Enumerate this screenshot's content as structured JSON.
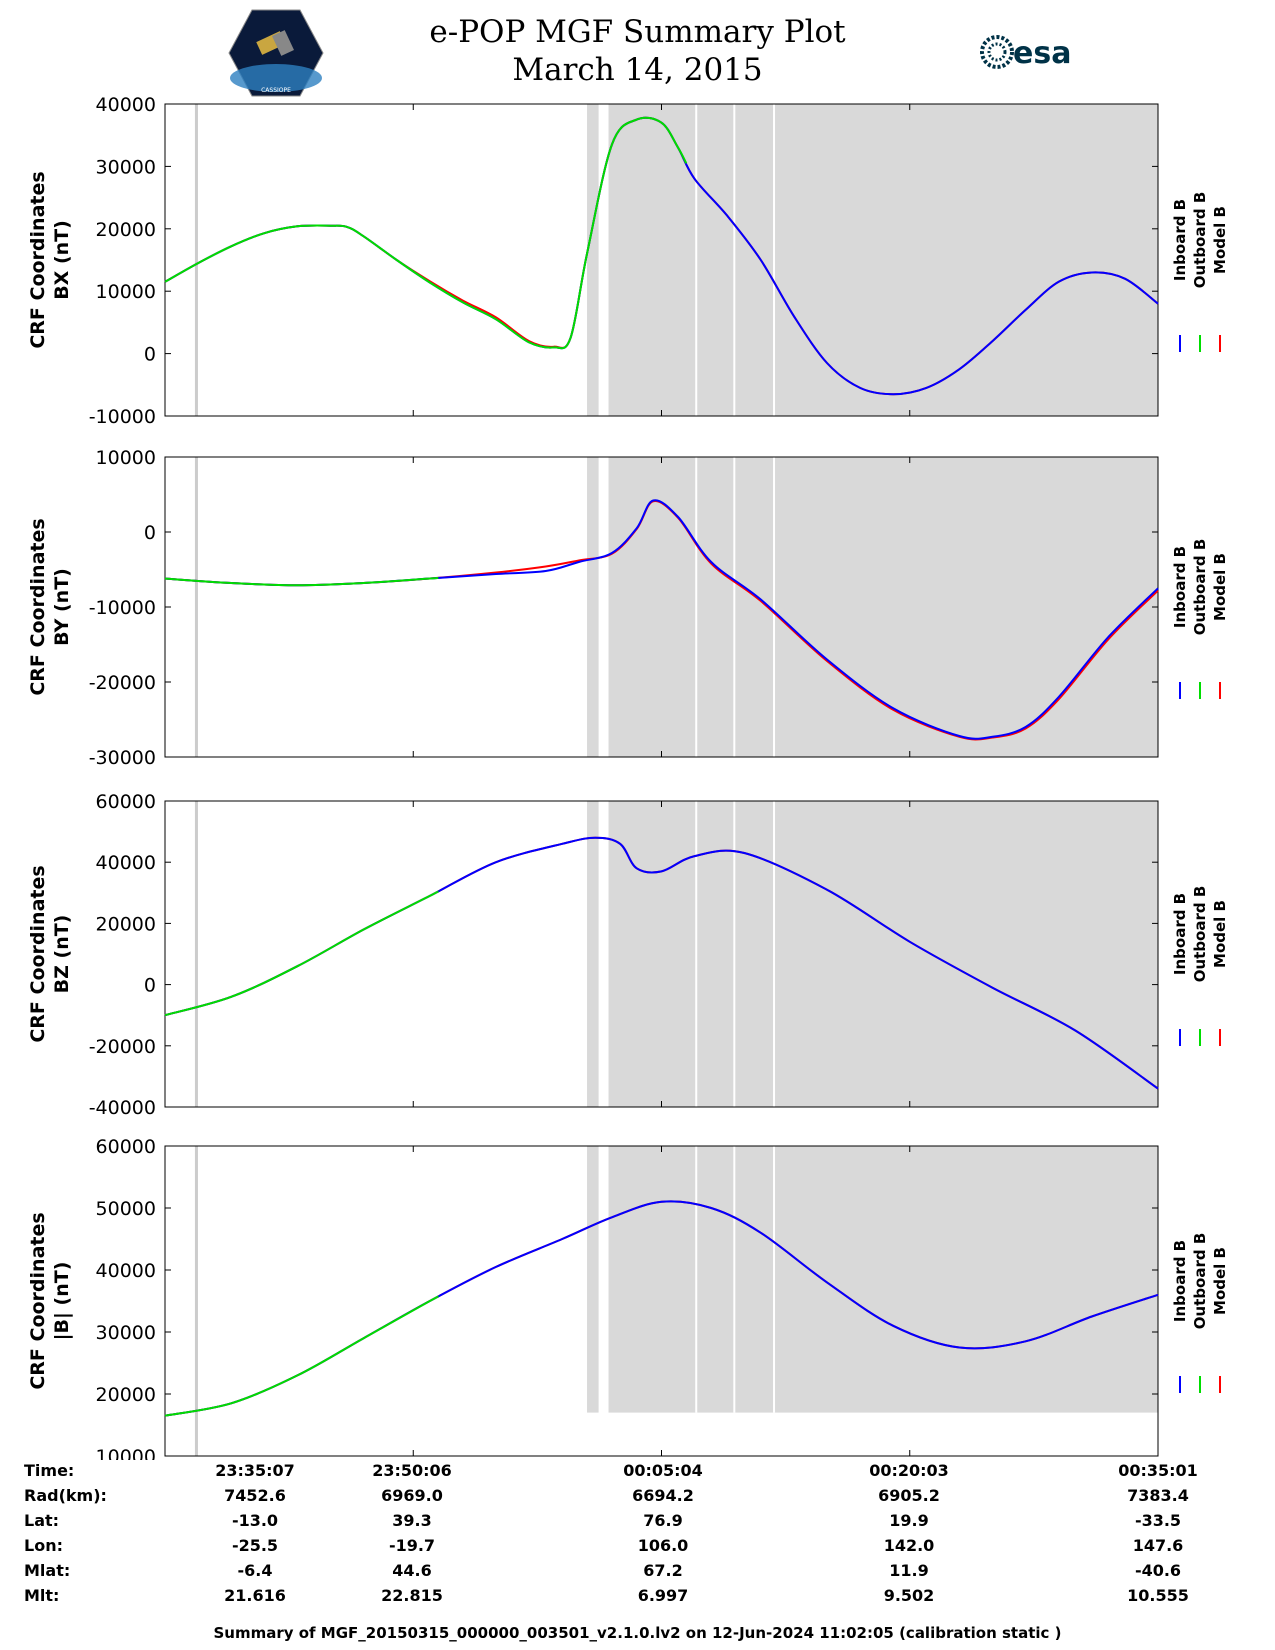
{
  "header": {
    "title": "e-POP MGF Summary Plot",
    "date": "March 14, 2015",
    "mission_logo": {
      "label": "CASSIOPE"
    },
    "esa_logo": {
      "label": "esa"
    }
  },
  "colors": {
    "inboard": "#0000ff",
    "outboard": "#00dd00",
    "model": "#ff0000",
    "shade": "#d9d9d9"
  },
  "legend": [
    "Inboard B",
    "Outboard B",
    "Model B"
  ],
  "chart_data": [
    {
      "type": "line",
      "ylabel": [
        "CRF Coordinates",
        "BX (nT)"
      ],
      "ylim": [
        -10000,
        40000
      ],
      "yticks": [
        -10000,
        0,
        10000,
        20000,
        30000,
        40000
      ],
      "x_unit": "minutes from 23:35:07",
      "xlim": [
        0,
        60
      ],
      "green_until": 31.5,
      "x": [
        0,
        2,
        4,
        6,
        8,
        10,
        11,
        12,
        14,
        16,
        18,
        20,
        22,
        23.5,
        24.5,
        25.5,
        27,
        28.5,
        30,
        31,
        32,
        34,
        36,
        38,
        40,
        42,
        44,
        46,
        48,
        50,
        52,
        54,
        56,
        58,
        60
      ],
      "inboard": [
        11500,
        14500,
        17200,
        19300,
        20400,
        20500,
        20300,
        18800,
        15000,
        11400,
        8200,
        5500,
        1800,
        1000,
        2500,
        16000,
        33500,
        37500,
        37000,
        33000,
        28000,
        22000,
        15000,
        6000,
        -1500,
        -5500,
        -6500,
        -5500,
        -2500,
        2000,
        7000,
        11500,
        13000,
        12000,
        8000
      ],
      "model": [
        11500,
        14500,
        17200,
        19300,
        20400,
        20500,
        20300,
        18800,
        15000,
        11600,
        8500,
        5800,
        2000,
        1100,
        2500,
        16000,
        33500,
        37500,
        37000,
        33000,
        28000,
        22000,
        15000,
        6000,
        -1500,
        -5500,
        -6500,
        -5500,
        -2500,
        2000,
        7000,
        11500,
        13000,
        12000,
        8000
      ]
    },
    {
      "type": "line",
      "ylabel": [
        "CRF Coordinates",
        "BY (nT)"
      ],
      "ylim": [
        -30000,
        10000
      ],
      "yticks": [
        -30000,
        -20000,
        -10000,
        0,
        10000
      ],
      "x_unit": "minutes from 23:35:07",
      "xlim": [
        0,
        60
      ],
      "green_until": 16.5,
      "x": [
        0,
        4,
        8,
        12,
        16,
        20,
        23,
        25,
        27,
        28.5,
        29.5,
        31,
        33,
        36,
        40,
        44,
        48,
        50,
        52,
        54,
        57,
        60
      ],
      "inboard": [
        -6200,
        -6800,
        -7100,
        -6800,
        -6200,
        -5600,
        -5200,
        -4000,
        -2800,
        500,
        4200,
        2000,
        -4000,
        -9000,
        -17000,
        -23500,
        -27200,
        -27300,
        -26000,
        -22000,
        -14000,
        -7500
      ],
      "model": [
        -6200,
        -6800,
        -7100,
        -6800,
        -6200,
        -5400,
        -4600,
        -3800,
        -2900,
        400,
        4100,
        1900,
        -4200,
        -9200,
        -17200,
        -23700,
        -27300,
        -27400,
        -26200,
        -22300,
        -14300,
        -7800
      ]
    },
    {
      "type": "line",
      "ylabel": [
        "CRF Coordinates",
        "BZ (nT)"
      ],
      "ylim": [
        -40000,
        60000
      ],
      "yticks": [
        -40000,
        -20000,
        0,
        20000,
        40000,
        60000
      ],
      "x_unit": "minutes from 23:35:07",
      "xlim": [
        0,
        60
      ],
      "green_until": 16.5,
      "x": [
        0,
        4,
        8,
        12,
        16,
        20,
        24,
        26,
        27.5,
        28.5,
        30,
        32,
        35,
        40,
        45,
        50,
        55,
        60
      ],
      "inboard": [
        -10000,
        -4000,
        6000,
        18000,
        29000,
        40000,
        46000,
        48000,
        46000,
        38000,
        37000,
        42000,
        43000,
        31000,
        14000,
        -1000,
        -15000,
        -34000
      ],
      "model": [
        -10000,
        -4000,
        6000,
        18000,
        29000,
        40000,
        46000,
        48000,
        46000,
        38000,
        37000,
        42000,
        43000,
        31000,
        14000,
        -1000,
        -15000,
        -34000
      ]
    },
    {
      "type": "line",
      "ylabel": [
        "CRF Coordinates",
        "|B| (nT)"
      ],
      "ylim": [
        10000,
        60000
      ],
      "yticks": [
        10000,
        20000,
        30000,
        40000,
        50000,
        60000
      ],
      "x_unit": "minutes from 23:35:07",
      "xlim": [
        0,
        60
      ],
      "green_until": 16.5,
      "x": [
        0,
        4,
        8,
        12,
        16,
        20,
        24,
        27,
        30,
        33,
        36,
        40,
        44,
        48,
        52,
        56,
        60
      ],
      "inboard": [
        16500,
        18500,
        23000,
        29000,
        35000,
        40500,
        45000,
        48500,
        51000,
        50000,
        46000,
        38000,
        31000,
        27500,
        28500,
        32500,
        36000
      ],
      "model": [
        16500,
        18500,
        23000,
        29000,
        35000,
        40500,
        45000,
        48500,
        51000,
        50000,
        46000,
        38000,
        31000,
        27500,
        28500,
        32500,
        36000
      ]
    }
  ],
  "footer": {
    "labels": [
      "Time:",
      "Rad(km):",
      "Lat:",
      "Lon:",
      "Mlat:",
      "Mlt:"
    ],
    "columns": [
      [
        "23:35:07",
        "7452.6",
        "-13.0",
        "-25.5",
        "-6.4",
        "21.616"
      ],
      [
        "23:50:06",
        "6969.0",
        "39.3",
        "-19.7",
        "44.6",
        "22.815"
      ],
      [
        "00:05:04",
        "6694.2",
        "76.9",
        "106.0",
        "67.2",
        "6.997"
      ],
      [
        "00:20:03",
        "6905.2",
        "19.9",
        "142.0",
        "11.9",
        "9.502"
      ],
      [
        "00:35:01",
        "7383.4",
        "-33.5",
        "147.6",
        "-40.6",
        "10.555"
      ]
    ],
    "summary": "Summary of MGF_20150315_000000_003501_v2.1.0.lv2 on 12-Jun-2024 11:02:05 (calibration static )"
  }
}
